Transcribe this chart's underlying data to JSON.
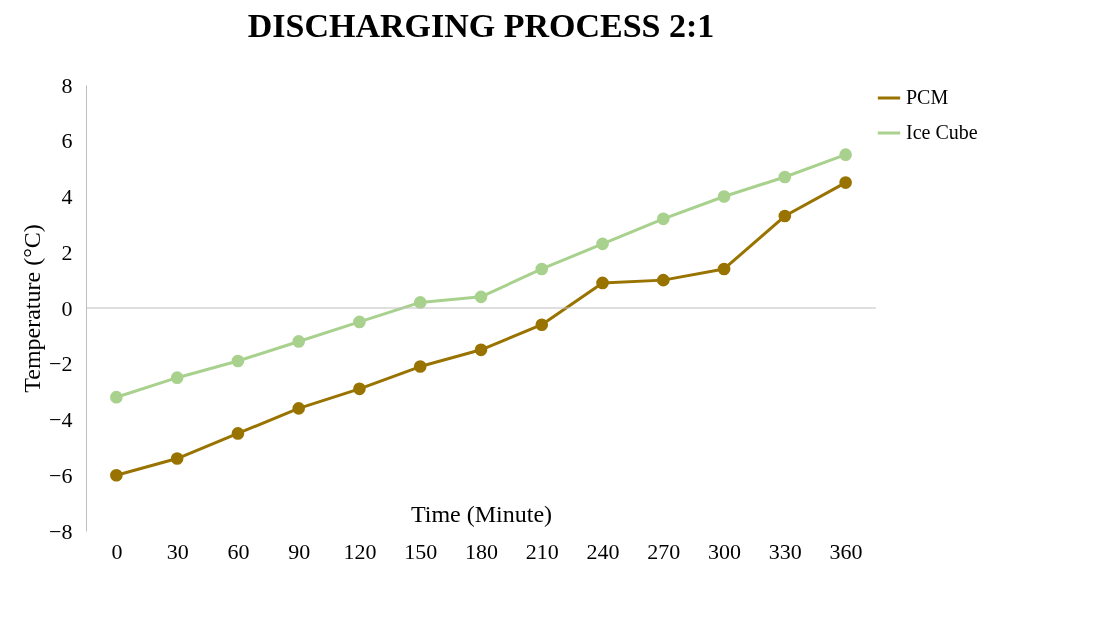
{
  "chart_data": {
    "type": "line",
    "title": "DISCHARGING PROCESS  2:1",
    "xlabel": "Time (Minute)",
    "ylabel": "Temperature (°C)",
    "categories": [
      "0",
      "30",
      "60",
      "90",
      "120",
      "150",
      "180",
      "210",
      "240",
      "270",
      "300",
      "330",
      "360"
    ],
    "series": [
      {
        "name": "PCM",
        "color": "#997300",
        "values": [
          -6.0,
          -5.4,
          -4.5,
          -3.6,
          -2.9,
          -2.1,
          -1.5,
          -0.6,
          0.9,
          1.0,
          1.4,
          3.3,
          4.5
        ]
      },
      {
        "name": "Ice Cube",
        "color": "#a9d18e",
        "values": [
          -3.2,
          -2.5,
          -1.9,
          -1.2,
          -0.5,
          0.2,
          0.4,
          1.4,
          2.3,
          3.2,
          4.0,
          4.7,
          5.5
        ]
      }
    ],
    "ylim": [
      -8,
      8
    ],
    "yticks": [
      -8,
      -6,
      -4,
      -2,
      0,
      2,
      4,
      6,
      8
    ],
    "ref_lines": [
      {
        "axis": "y",
        "value": 0,
        "color": "#bfbfbf"
      }
    ],
    "marker": "circle",
    "line_style": "solid",
    "legend": "top right",
    "grid": false
  }
}
